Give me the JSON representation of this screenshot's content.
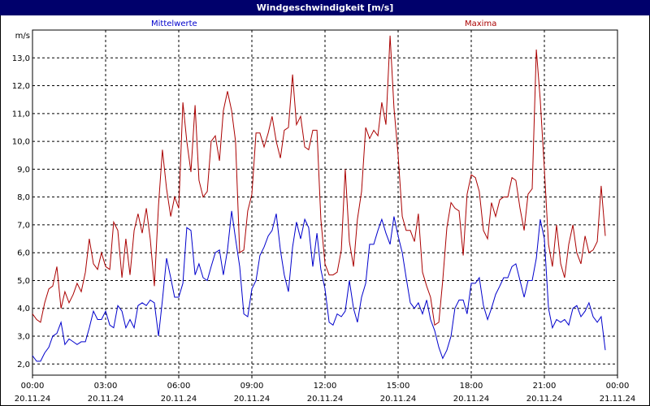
{
  "title": "Windgeschwindigkeit [m/s]",
  "colors": {
    "titlebar": "#00006b",
    "mittel": "#0000cc",
    "maxima": "#aa0000",
    "grid": "#000000"
  },
  "chart_data": {
    "type": "line",
    "title": "Windgeschwindigkeit [m/s]",
    "ylabel": "m/s",
    "ylim": [
      1.6,
      14.0
    ],
    "y_ticks": [
      "2,0",
      "3,0",
      "4,0",
      "5,0",
      "6,0",
      "7,0",
      "8,0",
      "9,0",
      "10,0",
      "11,0",
      "12,0",
      "13,0"
    ],
    "y_tick_values": [
      2,
      3,
      4,
      5,
      6,
      7,
      8,
      9,
      10,
      11,
      12,
      13
    ],
    "x_range_hours": [
      0,
      24
    ],
    "x_ticks": [
      {
        "time": "00:00",
        "date": "20.11.24"
      },
      {
        "time": "03:00",
        "date": "20.11.24"
      },
      {
        "time": "06:00",
        "date": "20.11.24"
      },
      {
        "time": "09:00",
        "date": "20.11.24"
      },
      {
        "time": "12:00",
        "date": "20.11.24"
      },
      {
        "time": "15:00",
        "date": "20.11.24"
      },
      {
        "time": "18:00",
        "date": "20.11.24"
      },
      {
        "time": "21:00",
        "date": "20.11.24"
      },
      {
        "time": "00:00",
        "date": "21.11.24"
      }
    ],
    "grid": true,
    "series": [
      {
        "name": "Mittelwerte",
        "color": "#0000cc",
        "points": [
          [
            0,
            2.3
          ],
          [
            0.17,
            2.1
          ],
          [
            0.33,
            2.1
          ],
          [
            0.5,
            2.4
          ],
          [
            0.67,
            2.6
          ],
          [
            0.83,
            3.0
          ],
          [
            1.0,
            3.1
          ],
          [
            1.17,
            3.5
          ],
          [
            1.33,
            2.7
          ],
          [
            1.5,
            2.9
          ],
          [
            1.67,
            2.8
          ],
          [
            1.83,
            2.7
          ],
          [
            2.0,
            2.8
          ],
          [
            2.17,
            2.8
          ],
          [
            2.33,
            3.3
          ],
          [
            2.5,
            3.9
          ],
          [
            2.67,
            3.6
          ],
          [
            2.83,
            3.6
          ],
          [
            3.0,
            3.9
          ],
          [
            3.17,
            3.4
          ],
          [
            3.33,
            3.3
          ],
          [
            3.5,
            4.1
          ],
          [
            3.67,
            3.9
          ],
          [
            3.83,
            3.3
          ],
          [
            4.0,
            3.6
          ],
          [
            4.17,
            3.3
          ],
          [
            4.33,
            4.1
          ],
          [
            4.5,
            4.2
          ],
          [
            4.67,
            4.1
          ],
          [
            4.83,
            4.3
          ],
          [
            5.0,
            4.2
          ],
          [
            5.17,
            3.0
          ],
          [
            5.33,
            4.3
          ],
          [
            5.5,
            5.8
          ],
          [
            5.67,
            5.1
          ],
          [
            5.83,
            4.4
          ],
          [
            6.0,
            4.4
          ],
          [
            6.17,
            4.9
          ],
          [
            6.33,
            6.9
          ],
          [
            6.5,
            6.8
          ],
          [
            6.67,
            5.2
          ],
          [
            6.83,
            5.6
          ],
          [
            7.0,
            5.1
          ],
          [
            7.17,
            5.0
          ],
          [
            7.33,
            5.5
          ],
          [
            7.5,
            6.0
          ],
          [
            7.67,
            6.1
          ],
          [
            7.83,
            5.2
          ],
          [
            8.0,
            6.1
          ],
          [
            8.17,
            7.5
          ],
          [
            8.33,
            6.5
          ],
          [
            8.5,
            5.5
          ],
          [
            8.67,
            3.8
          ],
          [
            8.83,
            3.7
          ],
          [
            9.0,
            4.7
          ],
          [
            9.17,
            5.0
          ],
          [
            9.33,
            5.9
          ],
          [
            9.5,
            6.2
          ],
          [
            9.67,
            6.6
          ],
          [
            9.83,
            6.8
          ],
          [
            10.0,
            7.4
          ],
          [
            10.17,
            6.1
          ],
          [
            10.33,
            5.2
          ],
          [
            10.5,
            4.6
          ],
          [
            10.67,
            6.2
          ],
          [
            10.83,
            7.1
          ],
          [
            11.0,
            6.5
          ],
          [
            11.17,
            7.2
          ],
          [
            11.33,
            6.9
          ],
          [
            11.5,
            5.5
          ],
          [
            11.67,
            6.7
          ],
          [
            11.83,
            5.4
          ],
          [
            12.0,
            4.7
          ],
          [
            12.17,
            3.5
          ],
          [
            12.33,
            3.4
          ],
          [
            12.5,
            3.8
          ],
          [
            12.67,
            3.7
          ],
          [
            12.83,
            3.9
          ],
          [
            13.0,
            5.0
          ],
          [
            13.17,
            4.0
          ],
          [
            13.33,
            3.5
          ],
          [
            13.5,
            4.4
          ],
          [
            13.67,
            4.9
          ],
          [
            13.83,
            6.3
          ],
          [
            14.0,
            6.3
          ],
          [
            14.17,
            6.8
          ],
          [
            14.33,
            7.2
          ],
          [
            14.5,
            6.7
          ],
          [
            14.67,
            6.3
          ],
          [
            14.83,
            7.3
          ],
          [
            15.0,
            6.6
          ],
          [
            15.17,
            6.0
          ],
          [
            15.33,
            5.1
          ],
          [
            15.5,
            4.2
          ],
          [
            15.67,
            4.0
          ],
          [
            15.83,
            4.2
          ],
          [
            16.0,
            3.8
          ],
          [
            16.17,
            4.3
          ],
          [
            16.33,
            3.6
          ],
          [
            16.5,
            3.2
          ],
          [
            16.67,
            2.6
          ],
          [
            16.83,
            2.2
          ],
          [
            17.0,
            2.5
          ],
          [
            17.17,
            3.0
          ],
          [
            17.33,
            4.0
          ],
          [
            17.5,
            4.3
          ],
          [
            17.67,
            4.3
          ],
          [
            17.83,
            3.8
          ],
          [
            18.0,
            4.9
          ],
          [
            18.17,
            4.9
          ],
          [
            18.33,
            5.1
          ],
          [
            18.5,
            4.1
          ],
          [
            18.67,
            3.6
          ],
          [
            18.83,
            4.0
          ],
          [
            19.0,
            4.5
          ],
          [
            19.17,
            4.8
          ],
          [
            19.33,
            5.1
          ],
          [
            19.5,
            5.1
          ],
          [
            19.67,
            5.5
          ],
          [
            19.83,
            5.6
          ],
          [
            20.0,
            5.0
          ],
          [
            20.17,
            4.4
          ],
          [
            20.33,
            5.0
          ],
          [
            20.5,
            5.0
          ],
          [
            20.67,
            5.8
          ],
          [
            20.83,
            7.2
          ],
          [
            21.0,
            6.5
          ],
          [
            21.17,
            4.0
          ],
          [
            21.33,
            3.3
          ],
          [
            21.5,
            3.6
          ],
          [
            21.67,
            3.5
          ],
          [
            21.83,
            3.6
          ],
          [
            22.0,
            3.4
          ],
          [
            22.17,
            4.0
          ],
          [
            22.33,
            4.1
          ],
          [
            22.5,
            3.7
          ],
          [
            22.67,
            3.9
          ],
          [
            22.83,
            4.2
          ],
          [
            23.0,
            3.7
          ],
          [
            23.17,
            3.5
          ],
          [
            23.33,
            3.7
          ],
          [
            23.5,
            2.5
          ]
        ]
      },
      {
        "name": "Maxima",
        "color": "#aa0000",
        "points": [
          [
            0,
            3.8
          ],
          [
            0.17,
            3.6
          ],
          [
            0.33,
            3.5
          ],
          [
            0.5,
            4.2
          ],
          [
            0.67,
            4.7
          ],
          [
            0.83,
            4.8
          ],
          [
            1.0,
            5.5
          ],
          [
            1.17,
            4.0
          ],
          [
            1.33,
            4.6
          ],
          [
            1.5,
            4.2
          ],
          [
            1.67,
            4.5
          ],
          [
            1.83,
            4.9
          ],
          [
            2.0,
            4.6
          ],
          [
            2.17,
            5.3
          ],
          [
            2.33,
            6.5
          ],
          [
            2.5,
            5.6
          ],
          [
            2.67,
            5.4
          ],
          [
            2.83,
            6.0
          ],
          [
            3.0,
            5.5
          ],
          [
            3.17,
            5.4
          ],
          [
            3.33,
            7.1
          ],
          [
            3.5,
            6.8
          ],
          [
            3.67,
            5.1
          ],
          [
            3.83,
            6.5
          ],
          [
            4.0,
            5.2
          ],
          [
            4.17,
            6.8
          ],
          [
            4.33,
            7.4
          ],
          [
            4.5,
            6.7
          ],
          [
            4.67,
            7.6
          ],
          [
            4.83,
            6.5
          ],
          [
            5.0,
            4.8
          ],
          [
            5.17,
            7.7
          ],
          [
            5.33,
            9.7
          ],
          [
            5.5,
            8.3
          ],
          [
            5.67,
            7.3
          ],
          [
            5.83,
            8.0
          ],
          [
            6.0,
            7.6
          ],
          [
            6.17,
            11.4
          ],
          [
            6.33,
            10.0
          ],
          [
            6.5,
            8.9
          ],
          [
            6.67,
            11.3
          ],
          [
            6.83,
            8.6
          ],
          [
            7.0,
            8.0
          ],
          [
            7.17,
            8.2
          ],
          [
            7.33,
            10.0
          ],
          [
            7.5,
            10.2
          ],
          [
            7.67,
            9.3
          ],
          [
            7.83,
            11.1
          ],
          [
            8.0,
            11.8
          ],
          [
            8.17,
            11.1
          ],
          [
            8.33,
            10.0
          ],
          [
            8.5,
            6.0
          ],
          [
            8.67,
            6.1
          ],
          [
            8.83,
            7.5
          ],
          [
            9.0,
            8.1
          ],
          [
            9.17,
            10.3
          ],
          [
            9.33,
            10.3
          ],
          [
            9.5,
            9.8
          ],
          [
            9.67,
            10.3
          ],
          [
            9.83,
            10.9
          ],
          [
            10.0,
            10.0
          ],
          [
            10.17,
            9.4
          ],
          [
            10.33,
            10.4
          ],
          [
            10.5,
            10.5
          ],
          [
            10.67,
            12.4
          ],
          [
            10.83,
            10.6
          ],
          [
            11.0,
            10.9
          ],
          [
            11.17,
            9.8
          ],
          [
            11.33,
            9.7
          ],
          [
            11.5,
            10.4
          ],
          [
            11.67,
            10.4
          ],
          [
            11.83,
            7.2
          ],
          [
            12.0,
            5.6
          ],
          [
            12.17,
            5.2
          ],
          [
            12.33,
            5.2
          ],
          [
            12.5,
            5.3
          ],
          [
            12.67,
            6.1
          ],
          [
            12.83,
            9.0
          ],
          [
            13.0,
            6.4
          ],
          [
            13.17,
            5.5
          ],
          [
            13.33,
            7.2
          ],
          [
            13.5,
            8.2
          ],
          [
            13.67,
            10.5
          ],
          [
            13.83,
            10.1
          ],
          [
            14.0,
            10.4
          ],
          [
            14.17,
            10.2
          ],
          [
            14.33,
            11.4
          ],
          [
            14.5,
            10.6
          ],
          [
            14.67,
            13.8
          ],
          [
            14.83,
            11.2
          ],
          [
            15.0,
            9.5
          ],
          [
            15.17,
            7.3
          ],
          [
            15.33,
            6.8
          ],
          [
            15.5,
            6.8
          ],
          [
            15.67,
            6.4
          ],
          [
            15.83,
            7.4
          ],
          [
            16.0,
            5.3
          ],
          [
            16.17,
            4.8
          ],
          [
            16.33,
            4.4
          ],
          [
            16.5,
            3.4
          ],
          [
            16.67,
            3.5
          ],
          [
            16.83,
            5.0
          ],
          [
            17.0,
            6.9
          ],
          [
            17.17,
            7.8
          ],
          [
            17.33,
            7.6
          ],
          [
            17.5,
            7.5
          ],
          [
            17.67,
            5.9
          ],
          [
            17.83,
            8.1
          ],
          [
            18.0,
            8.8
          ],
          [
            18.17,
            8.7
          ],
          [
            18.33,
            8.2
          ],
          [
            18.5,
            6.8
          ],
          [
            18.67,
            6.5
          ],
          [
            18.83,
            7.8
          ],
          [
            19.0,
            7.3
          ],
          [
            19.17,
            7.9
          ],
          [
            19.33,
            8.0
          ],
          [
            19.5,
            8.0
          ],
          [
            19.67,
            8.7
          ],
          [
            19.83,
            8.6
          ],
          [
            20.0,
            7.6
          ],
          [
            20.17,
            6.8
          ],
          [
            20.33,
            8.1
          ],
          [
            20.5,
            8.3
          ],
          [
            20.67,
            13.3
          ],
          [
            20.83,
            11.5
          ],
          [
            21.0,
            9.0
          ],
          [
            21.17,
            6.3
          ],
          [
            21.33,
            5.5
          ],
          [
            21.5,
            7.0
          ],
          [
            21.67,
            5.6
          ],
          [
            21.83,
            5.1
          ],
          [
            22.0,
            6.3
          ],
          [
            22.17,
            7.0
          ],
          [
            22.33,
            6.0
          ],
          [
            22.5,
            5.6
          ],
          [
            22.67,
            6.6
          ],
          [
            22.83,
            6.0
          ],
          [
            23.0,
            6.1
          ],
          [
            23.17,
            6.4
          ],
          [
            23.33,
            8.4
          ],
          [
            23.5,
            6.6
          ]
        ]
      }
    ]
  }
}
